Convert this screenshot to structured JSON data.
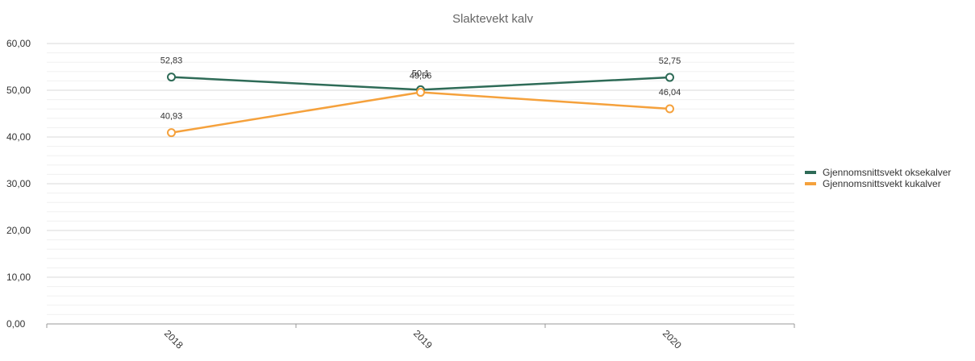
{
  "chart_data": {
    "type": "line",
    "title": "Slaktevekt kalv",
    "xlabel": "",
    "ylabel": "",
    "categories": [
      "2018",
      "2019",
      "2020"
    ],
    "ylim": [
      0,
      60
    ],
    "y_ticks": [
      "0,00",
      "10,00",
      "20,00",
      "30,00",
      "40,00",
      "50,00",
      "60,00"
    ],
    "grid": true,
    "legend_position": "right",
    "series": [
      {
        "name": "Gjennomsnittsvekt oksekalver",
        "color": "#2e6b57",
        "values": [
          52.83,
          50.1,
          52.75
        ],
        "labels": [
          "52,83",
          "50,1",
          "52,75"
        ]
      },
      {
        "name": "Gjennomsnittsvekt kukalver",
        "color": "#f5a13c",
        "values": [
          40.93,
          49.56,
          46.04
        ],
        "labels": [
          "40,93",
          "49,56",
          "46,04"
        ]
      }
    ]
  }
}
